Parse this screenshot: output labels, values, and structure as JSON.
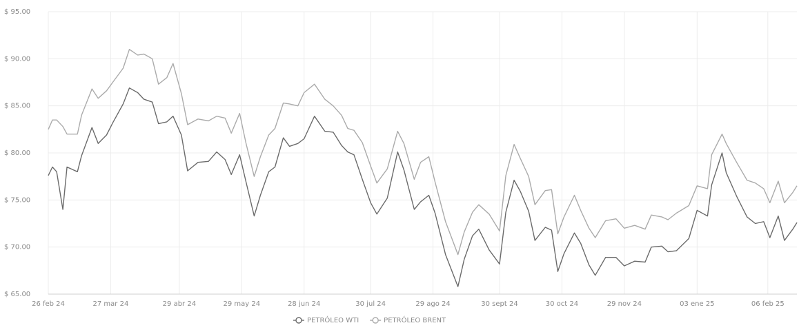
{
  "chart_data": {
    "type": "line",
    "x": [
      "2024-02-26",
      "2024-02-28",
      "2024-03-01",
      "2024-03-04",
      "2024-03-06",
      "2024-03-11",
      "2024-03-13",
      "2024-03-18",
      "2024-03-21",
      "2024-03-25",
      "2024-03-28",
      "2024-04-02",
      "2024-04-05",
      "2024-04-09",
      "2024-04-12",
      "2024-04-16",
      "2024-04-19",
      "2024-04-23",
      "2024-04-26",
      "2024-04-30",
      "2024-05-03",
      "2024-05-08",
      "2024-05-13",
      "2024-05-17",
      "2024-05-21",
      "2024-05-24",
      "2024-05-28",
      "2024-05-31",
      "2024-06-04",
      "2024-06-07",
      "2024-06-11",
      "2024-06-14",
      "2024-06-18",
      "2024-06-21",
      "2024-06-25",
      "2024-06-28",
      "2024-07-03",
      "2024-07-08",
      "2024-07-12",
      "2024-07-16",
      "2024-07-19",
      "2024-07-22",
      "2024-07-26",
      "2024-07-30",
      "2024-08-02",
      "2024-08-07",
      "2024-08-12",
      "2024-08-15",
      "2024-08-20",
      "2024-08-23",
      "2024-08-27",
      "2024-08-30",
      "2024-09-04",
      "2024-09-10",
      "2024-09-13",
      "2024-09-17",
      "2024-09-20",
      "2024-09-25",
      "2024-09-30",
      "2024-10-03",
      "2024-10-07",
      "2024-10-10",
      "2024-10-14",
      "2024-10-17",
      "2024-10-22",
      "2024-10-25",
      "2024-10-28",
      "2024-10-31",
      "2024-11-05",
      "2024-11-08",
      "2024-11-12",
      "2024-11-15",
      "2024-11-20",
      "2024-11-25",
      "2024-11-29",
      "2024-12-04",
      "2024-12-09",
      "2024-12-12",
      "2024-12-17",
      "2024-12-20",
      "2024-12-24",
      "2024-12-30",
      "2025-01-03",
      "2025-01-08",
      "2025-01-10",
      "2025-01-15",
      "2025-01-17",
      "2025-01-22",
      "2025-01-27",
      "2025-01-31",
      "2025-02-04",
      "2025-02-07",
      "2025-02-11",
      "2025-02-14",
      "2025-02-18",
      "2025-02-20"
    ],
    "series": [
      {
        "name": "PETRÓLEO WTI",
        "color": "#6b6b6b",
        "values": [
          77.6,
          78.5,
          78.0,
          74.0,
          78.5,
          78.0,
          79.7,
          82.7,
          81.0,
          81.9,
          83.2,
          85.2,
          86.9,
          86.4,
          85.7,
          85.4,
          83.1,
          83.3,
          83.9,
          81.9,
          78.1,
          79.0,
          79.1,
          80.1,
          79.3,
          77.7,
          79.8,
          77.0,
          73.3,
          75.5,
          78.0,
          78.5,
          81.6,
          80.7,
          81.0,
          81.5,
          83.9,
          82.3,
          82.2,
          80.8,
          80.1,
          79.8,
          77.2,
          74.7,
          73.5,
          75.2,
          80.1,
          78.2,
          74.0,
          74.8,
          75.5,
          73.6,
          69.2,
          65.8,
          68.7,
          71.2,
          71.9,
          69.7,
          68.2,
          73.7,
          77.1,
          75.9,
          73.8,
          70.7,
          72.1,
          71.8,
          67.4,
          69.3,
          71.5,
          70.4,
          68.1,
          67.0,
          68.9,
          68.9,
          68.0,
          68.5,
          68.4,
          70.0,
          70.1,
          69.5,
          69.6,
          70.9,
          73.9,
          73.3,
          76.6,
          80.0,
          77.9,
          75.4,
          73.2,
          72.5,
          72.7,
          71.0,
          73.3,
          70.7,
          71.9,
          72.6
        ]
      },
      {
        "name": "PETRÓLEO BRENT",
        "color": "#ababab",
        "values": [
          82.5,
          83.5,
          83.5,
          82.8,
          82.0,
          82.0,
          84.0,
          86.8,
          85.8,
          86.6,
          87.5,
          89.0,
          91.0,
          90.4,
          90.5,
          90.0,
          87.3,
          88.0,
          89.5,
          86.3,
          83.0,
          83.6,
          83.4,
          83.9,
          83.7,
          82.1,
          84.2,
          81.1,
          77.5,
          79.6,
          81.9,
          82.6,
          85.3,
          85.2,
          85.0,
          86.4,
          87.3,
          85.7,
          85.0,
          84.0,
          82.6,
          82.4,
          81.1,
          78.6,
          76.8,
          78.3,
          82.3,
          81.0,
          77.2,
          79.0,
          79.6,
          76.9,
          72.7,
          69.2,
          71.6,
          73.7,
          74.5,
          73.5,
          71.7,
          77.6,
          80.9,
          79.4,
          77.5,
          74.5,
          76.0,
          76.1,
          71.4,
          73.2,
          75.5,
          73.9,
          72.0,
          71.0,
          72.8,
          73.0,
          72.0,
          72.3,
          71.9,
          73.4,
          73.2,
          72.9,
          73.6,
          74.4,
          76.5,
          76.2,
          79.8,
          82.0,
          81.0,
          79.0,
          77.1,
          76.8,
          76.2,
          74.7,
          77.0,
          74.7,
          75.8,
          76.5
        ]
      }
    ],
    "xlim": [
      "2024-02-26",
      "2025-02-20"
    ],
    "xticks": [
      {
        "value": "2024-02-26",
        "label": "26 feb 24"
      },
      {
        "value": "2024-03-27",
        "label": "27 mar 24"
      },
      {
        "value": "2024-04-29",
        "label": "29 abr 24"
      },
      {
        "value": "2024-05-29",
        "label": "29 may 24"
      },
      {
        "value": "2024-06-28",
        "label": "28 jun 24"
      },
      {
        "value": "2024-07-30",
        "label": "30 jul 24"
      },
      {
        "value": "2024-08-29",
        "label": "29 ago 24"
      },
      {
        "value": "2024-09-30",
        "label": "30 sept 24"
      },
      {
        "value": "2024-10-30",
        "label": "30 oct 24"
      },
      {
        "value": "2024-11-29",
        "label": "29 nov 24"
      },
      {
        "value": "2025-01-03",
        "label": "03 ene 25"
      },
      {
        "value": "2025-02-06",
        "label": "06 feb 25"
      }
    ],
    "ylim": [
      65,
      95
    ],
    "yticks": [
      {
        "value": 65,
        "label": "$ 65.00"
      },
      {
        "value": 70,
        "label": "$ 70.00"
      },
      {
        "value": 75,
        "label": "$ 75.00"
      },
      {
        "value": 80,
        "label": "$ 80.00"
      },
      {
        "value": 85,
        "label": "$ 85.00"
      },
      {
        "value": 90,
        "label": "$ 90.00"
      },
      {
        "value": 95,
        "label": "$ 95.00"
      }
    ],
    "grid": true
  }
}
